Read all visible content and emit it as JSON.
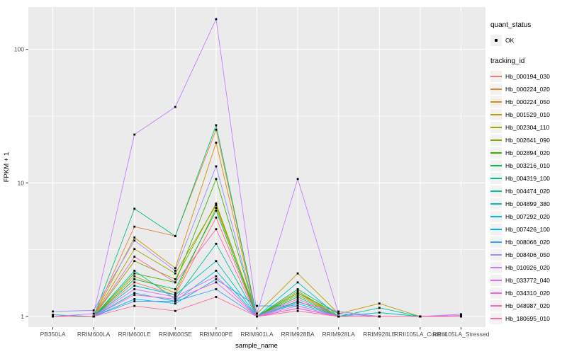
{
  "chart_data": {
    "type": "line",
    "title": "",
    "xlabel": "sample_name",
    "ylabel": "FPKM + 1",
    "y_scale": "log10",
    "y_ticks": [
      1,
      10,
      100
    ],
    "y_minor_ticks": [
      3.162,
      31.62
    ],
    "ylim": [
      0.83,
      207
    ],
    "grid": true,
    "legend_position": "right",
    "panel_bg": "#EBEBEB",
    "grid_color": "#FFFFFF",
    "point_color": "#000000",
    "categories": [
      "PB350LA",
      "RRIM600LA",
      "RRIM600LE",
      "RRIM600SE",
      "RRIM600PE",
      "RRIM901LA",
      "RRIM928BA",
      "RRIM928LA",
      "RRIM928LE",
      "RRII105LA_Control",
      "RRII105LA_Stressed"
    ],
    "series": [
      {
        "name": "Hb_000194_030",
        "color": "#F8766D",
        "values": [
          1,
          1,
          1.8,
          1.45,
          5.5,
          1,
          1.3,
          1,
          1,
          1,
          1
        ]
      },
      {
        "name": "Hb_000224_020",
        "color": "#EA8331",
        "values": [
          1,
          1,
          4.7,
          4.0,
          25,
          1,
          1.5,
          1,
          1,
          1,
          1
        ]
      },
      {
        "name": "Hb_000224_050",
        "color": "#D89000",
        "values": [
          1,
          1,
          3.9,
          2.3,
          20,
          1,
          1.4,
          1,
          1,
          1,
          1
        ]
      },
      {
        "name": "Hb_001529_010",
        "color": "#C09B00",
        "values": [
          1,
          1,
          2.0,
          1.5,
          6.5,
          1.05,
          2.1,
          1.05,
          1.25,
          1,
          1
        ]
      },
      {
        "name": "Hb_002304_110",
        "color": "#A3A500",
        "values": [
          1,
          1,
          3.2,
          2.1,
          6.8,
          1,
          1.55,
          1,
          1,
          1,
          1
        ]
      },
      {
        "name": "Hb_002641_090",
        "color": "#7CAE00",
        "values": [
          1,
          1,
          2.6,
          1.9,
          7.0,
          1,
          1.45,
          1,
          1,
          1,
          1
        ]
      },
      {
        "name": "Hb_002894_020",
        "color": "#39B600",
        "values": [
          1,
          1,
          2.1,
          1.8,
          10.7,
          1,
          1.5,
          1.05,
          1,
          1,
          1
        ]
      },
      {
        "name": "Hb_003216_010",
        "color": "#00BB4E",
        "values": [
          1,
          1,
          1.9,
          1.6,
          6.2,
          1,
          1.3,
          1,
          1,
          1,
          1
        ]
      },
      {
        "name": "Hb_004319_100",
        "color": "#00BF7D",
        "values": [
          1,
          1,
          6.4,
          4.0,
          27,
          1,
          1.6,
          1.05,
          1,
          1,
          1
        ]
      },
      {
        "name": "Hb_004474_020",
        "color": "#00C1A3",
        "values": [
          1.03,
          1,
          2.2,
          1.35,
          3.5,
          1,
          1.4,
          1,
          1.16,
          1,
          1
        ]
      },
      {
        "name": "Hb_004899_380",
        "color": "#00BFC4",
        "values": [
          1,
          1,
          1.7,
          1.45,
          2.6,
          1,
          1.8,
          1,
          1.07,
          1,
          1
        ]
      },
      {
        "name": "Hb_007292_020",
        "color": "#00BAE0",
        "values": [
          1,
          1,
          1.5,
          1.3,
          2.2,
          1,
          1.25,
          1,
          1,
          1,
          1
        ]
      },
      {
        "name": "Hb_007426_100",
        "color": "#00B0F6",
        "values": [
          1,
          1,
          1.35,
          1.25,
          1.9,
          1.2,
          1.2,
          1,
          1,
          1,
          1
        ]
      },
      {
        "name": "Hb_008066_020",
        "color": "#35A2FF",
        "values": [
          1,
          1,
          1.3,
          1.3,
          1.6,
          1,
          1.15,
          1,
          1,
          1,
          1
        ]
      },
      {
        "name": "Hb_008406_050",
        "color": "#9590FF",
        "values": [
          1.09,
          1.11,
          3.7,
          2.2,
          13.3,
          1,
          1.28,
          1.09,
          1,
          1,
          1.04
        ]
      },
      {
        "name": "Hb_010926_020",
        "color": "#C77CFF",
        "values": [
          1,
          1.05,
          23,
          37,
          168,
          1.05,
          10.7,
          1.05,
          1,
          1,
          1
        ]
      },
      {
        "name": "Hb_033772_040",
        "color": "#E76BF3",
        "values": [
          1,
          1,
          1.6,
          1.4,
          2.0,
          1,
          1.2,
          1,
          1,
          1,
          1.02
        ]
      },
      {
        "name": "Hb_034310_020",
        "color": "#FA62DB",
        "values": [
          1,
          1,
          1.45,
          1.35,
          1.8,
          1,
          1.15,
          1,
          1,
          1,
          1
        ]
      },
      {
        "name": "Hb_048987_020",
        "color": "#FF62BC",
        "values": [
          1,
          1,
          2.8,
          1.8,
          4.5,
          1,
          1.35,
          1,
          1,
          1,
          1
        ]
      },
      {
        "name": "Hb_180695_010",
        "color": "#FF6A98",
        "values": [
          1,
          1,
          1.2,
          1.1,
          1.4,
          1,
          1.1,
          1,
          1,
          1,
          1
        ]
      }
    ]
  },
  "legend": {
    "quant_status": {
      "title": "quant_status",
      "items": [
        {
          "label": "OK",
          "marker": "point"
        }
      ]
    },
    "tracking_id": {
      "title": "tracking_id"
    }
  }
}
